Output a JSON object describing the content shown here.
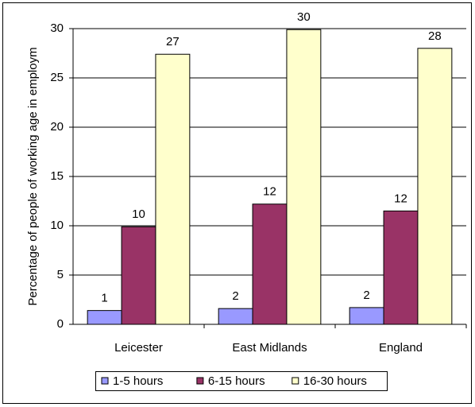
{
  "chart_data": {
    "type": "bar",
    "y_label": "Percentage of people of working age in employm",
    "categories": [
      "Leicester",
      "East Midlands",
      "England"
    ],
    "series": [
      {
        "name": "1-5 hours",
        "color": "#9999ff",
        "values": [
          1.4,
          1.6,
          1.7
        ],
        "value_labels": [
          "1",
          "2",
          "2"
        ]
      },
      {
        "name": "6-15 hours",
        "color": "#993366",
        "values": [
          9.9,
          12.2,
          11.5
        ],
        "value_labels": [
          "10",
          "12",
          "12"
        ]
      },
      {
        "name": "16-30 hours",
        "color": "#ffffcc",
        "values": [
          27.4,
          29.9,
          28
        ],
        "value_labels": [
          "27",
          "30",
          "28"
        ]
      }
    ],
    "ylim": [
      0,
      30
    ],
    "yticks": [
      0,
      5,
      10,
      15,
      20,
      25,
      30
    ],
    "grid": true,
    "legend": "bottom"
  }
}
